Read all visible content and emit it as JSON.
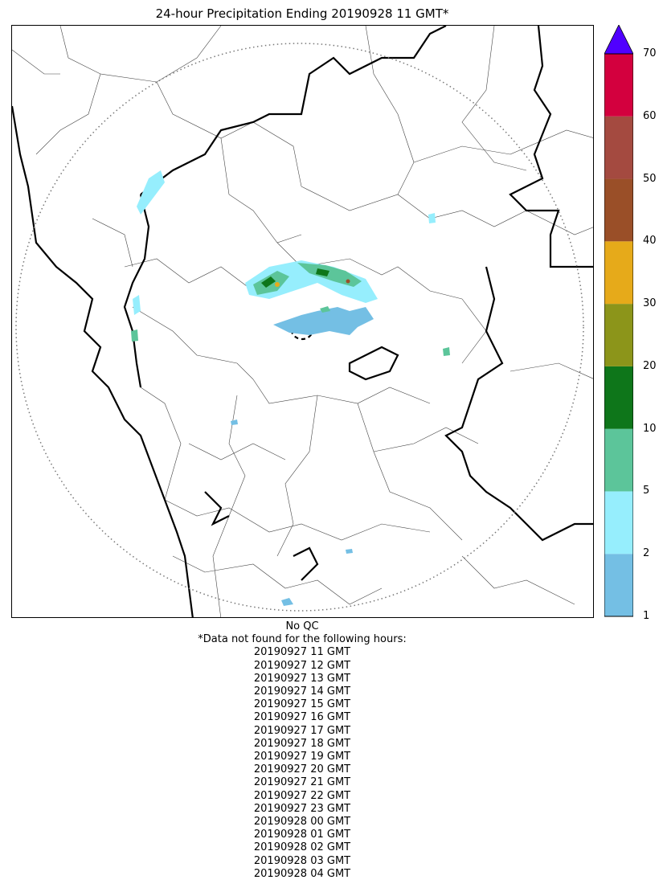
{
  "title": "24-hour Precipitation Ending 20190928 11 GMT*",
  "qc_note": "No QC",
  "missing_header": "*Data not found for the following hours:",
  "missing_hours": [
    "20190927 11 GMT",
    "20190927 12 GMT",
    "20190927 13 GMT",
    "20190927 14 GMT",
    "20190927 15 GMT",
    "20190927 16 GMT",
    "20190927 17 GMT",
    "20190927 18 GMT",
    "20190927 19 GMT",
    "20190927 20 GMT",
    "20190927 21 GMT",
    "20190927 22 GMT",
    "20190927 23 GMT",
    "20190928 00 GMT",
    "20190928 01 GMT",
    "20190928 02 GMT",
    "20190928 03 GMT",
    "20190928 04 GMT"
  ],
  "colorbar": {
    "ticks": [
      "1",
      "2",
      "5",
      "10",
      "20",
      "30",
      "40",
      "50",
      "60",
      "70"
    ],
    "colors": [
      "#74bfe4",
      "#96eefd",
      "#5cc59a",
      "#0e761a",
      "#8c951a",
      "#e6aa1a",
      "#9a4f28",
      "#a44a40",
      "#d3003e"
    ],
    "extend_color": "#5000ff"
  }
}
